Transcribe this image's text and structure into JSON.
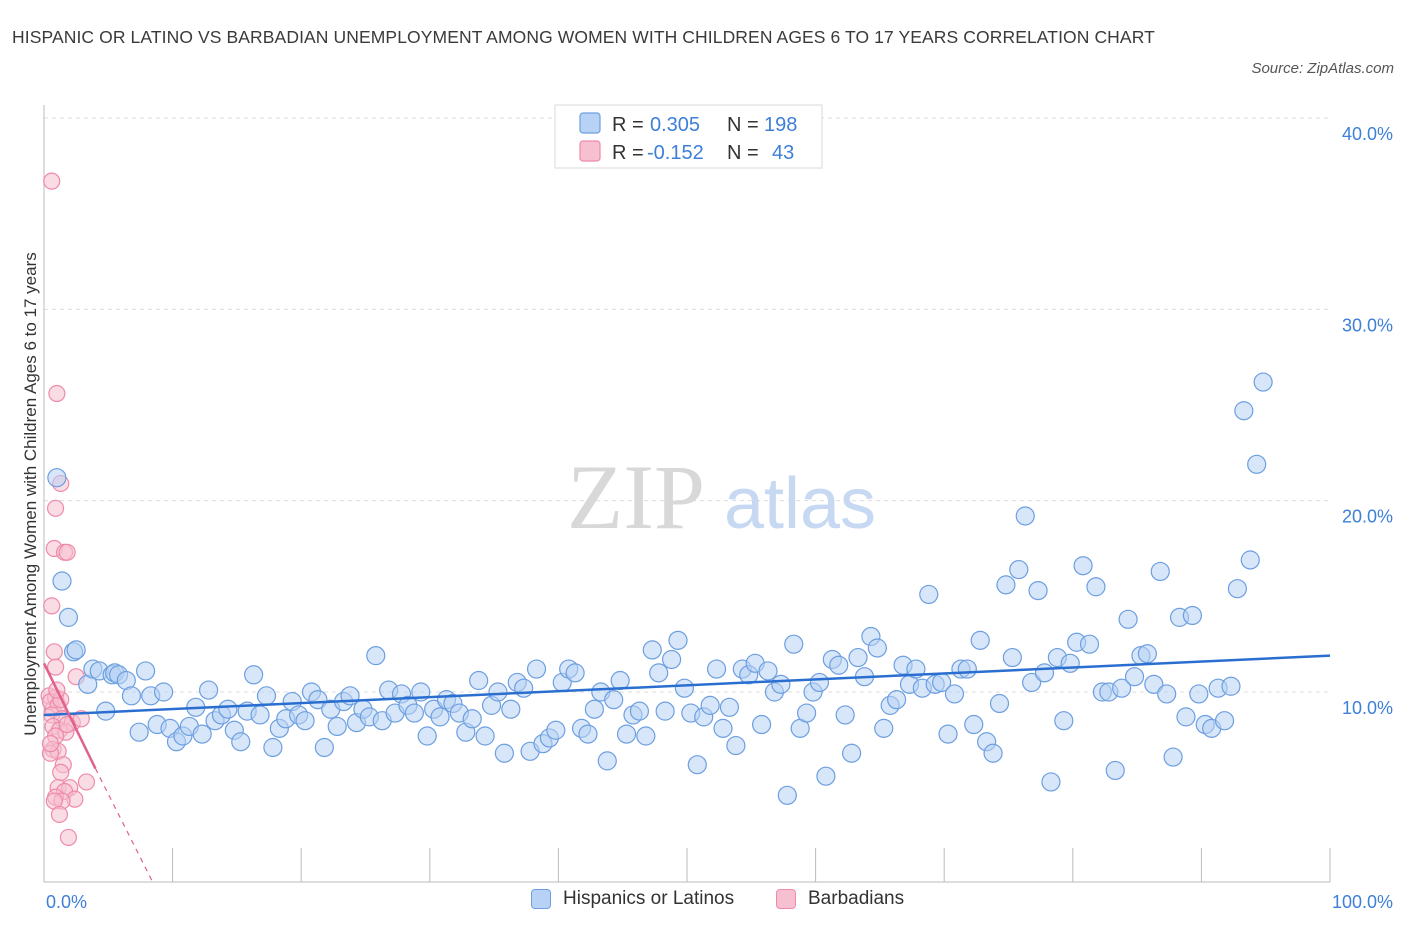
{
  "title": "HISPANIC OR LATINO VS BARBADIAN UNEMPLOYMENT AMONG WOMEN WITH CHILDREN AGES 6 TO 17 YEARS CORRELATION CHART",
  "source": "Source: ZipAtlas.com",
  "watermark": {
    "zip": "ZIP",
    "atlas": "atlas"
  },
  "legend_box": {
    "rows": [
      {
        "r_label": "R =",
        "r_value": "0.305",
        "n_label": "N =",
        "n_value": "198"
      },
      {
        "r_label": "R =",
        "r_value": "-0.152",
        "n_label": "N =",
        "n_value": "43"
      }
    ]
  },
  "bottom_legend": [
    "Hispanics or Latinos",
    "Barbadians"
  ],
  "colors": {
    "blue_fill": "#b7d2f4",
    "blue_stroke": "#6d9fe0",
    "blue_line": "#2a6fd0",
    "pink_fill": "#f6c0d0",
    "pink_stroke": "#ee8aaa",
    "pink_line": "#e0618d",
    "tick_text": "#3d7fd9",
    "grid": "#dddddd"
  },
  "chart_data": {
    "type": "scatter",
    "xlabel": "",
    "ylabel": "Unemployment Among Women with Children Ages 6 to 17 years",
    "xlim": [
      0,
      100
    ],
    "ylim": [
      0,
      40
    ],
    "x_tick_labels": [
      "0.0%",
      "100.0%"
    ],
    "y_ticks": [
      10,
      20,
      30,
      40
    ],
    "y_tick_labels": [
      "10.0%",
      "20.0%",
      "30.0%",
      "40.0%"
    ],
    "grid": "horizontal dashed",
    "legend_position": "top-center",
    "series": [
      {
        "name": "Hispanics or Latinos",
        "R": 0.305,
        "N": 198,
        "trendline": {
          "x": [
            0,
            100
          ],
          "y": [
            8.8,
            11.9
          ]
        },
        "points": [
          [
            1,
            21.2
          ],
          [
            1.4,
            15.8
          ],
          [
            1.9,
            13.9
          ],
          [
            2.3,
            12.1
          ],
          [
            2.5,
            12.2
          ],
          [
            3.4,
            10.4
          ],
          [
            3.8,
            11.2
          ],
          [
            4.3,
            11.1
          ],
          [
            4.8,
            9.0
          ],
          [
            5.3,
            10.9
          ],
          [
            5.5,
            11.0
          ],
          [
            5.8,
            10.9
          ],
          [
            6.4,
            10.6
          ],
          [
            6.8,
            9.8
          ],
          [
            7.4,
            7.9
          ],
          [
            7.9,
            11.1
          ],
          [
            8.3,
            9.8
          ],
          [
            8.8,
            8.3
          ],
          [
            9.3,
            10.0
          ],
          [
            9.8,
            8.1
          ],
          [
            10.3,
            7.4
          ],
          [
            10.8,
            7.7
          ],
          [
            11.3,
            8.2
          ],
          [
            11.8,
            9.2
          ],
          [
            12.3,
            7.8
          ],
          [
            12.8,
            10.1
          ],
          [
            13.3,
            8.5
          ],
          [
            13.8,
            8.8
          ],
          [
            14.3,
            9.1
          ],
          [
            14.8,
            8.0
          ],
          [
            15.3,
            7.4
          ],
          [
            15.8,
            9.0
          ],
          [
            16.3,
            10.9
          ],
          [
            16.8,
            8.8
          ],
          [
            17.3,
            9.8
          ],
          [
            17.8,
            7.1
          ],
          [
            18.3,
            8.1
          ],
          [
            18.8,
            8.6
          ],
          [
            19.3,
            9.5
          ],
          [
            19.8,
            8.8
          ],
          [
            20.3,
            8.5
          ],
          [
            20.8,
            10.0
          ],
          [
            21.3,
            9.6
          ],
          [
            21.8,
            7.1
          ],
          [
            22.3,
            9.1
          ],
          [
            22.8,
            8.2
          ],
          [
            23.3,
            9.5
          ],
          [
            23.8,
            9.8
          ],
          [
            24.3,
            8.4
          ],
          [
            24.8,
            9.1
          ],
          [
            25.3,
            8.7
          ],
          [
            25.8,
            11.9
          ],
          [
            26.3,
            8.5
          ],
          [
            26.8,
            10.1
          ],
          [
            27.3,
            8.9
          ],
          [
            27.8,
            9.9
          ],
          [
            28.3,
            9.3
          ],
          [
            28.8,
            8.9
          ],
          [
            29.3,
            10.0
          ],
          [
            29.8,
            7.7
          ],
          [
            30.3,
            9.1
          ],
          [
            30.8,
            8.7
          ],
          [
            31.3,
            9.6
          ],
          [
            31.8,
            9.4
          ],
          [
            32.3,
            8.9
          ],
          [
            32.8,
            7.9
          ],
          [
            33.3,
            8.6
          ],
          [
            33.8,
            10.6
          ],
          [
            34.3,
            7.7
          ],
          [
            34.8,
            9.3
          ],
          [
            35.3,
            10.0
          ],
          [
            35.8,
            6.8
          ],
          [
            36.3,
            9.1
          ],
          [
            36.8,
            10.5
          ],
          [
            37.3,
            10.2
          ],
          [
            37.8,
            6.9
          ],
          [
            38.3,
            11.2
          ],
          [
            38.8,
            7.3
          ],
          [
            39.3,
            7.6
          ],
          [
            39.8,
            8.0
          ],
          [
            40.3,
            10.5
          ],
          [
            40.8,
            11.2
          ],
          [
            41.3,
            11.0
          ],
          [
            41.8,
            8.1
          ],
          [
            42.3,
            7.8
          ],
          [
            42.8,
            9.1
          ],
          [
            43.3,
            10.0
          ],
          [
            43.8,
            6.4
          ],
          [
            44.3,
            9.6
          ],
          [
            44.8,
            10.6
          ],
          [
            45.3,
            7.8
          ],
          [
            45.8,
            8.8
          ],
          [
            46.3,
            9.0
          ],
          [
            46.8,
            7.7
          ],
          [
            47.3,
            12.2
          ],
          [
            47.8,
            11.0
          ],
          [
            48.3,
            9.0
          ],
          [
            48.8,
            11.7
          ],
          [
            49.3,
            12.7
          ],
          [
            49.8,
            10.2
          ],
          [
            50.3,
            8.9
          ],
          [
            50.8,
            6.2
          ],
          [
            51.3,
            8.7
          ],
          [
            51.8,
            9.3
          ],
          [
            52.3,
            11.2
          ],
          [
            52.8,
            8.1
          ],
          [
            53.3,
            9.2
          ],
          [
            53.8,
            7.2
          ],
          [
            54.3,
            11.2
          ],
          [
            54.8,
            10.9
          ],
          [
            55.3,
            11.5
          ],
          [
            55.8,
            8.3
          ],
          [
            56.3,
            11.1
          ],
          [
            56.8,
            10.0
          ],
          [
            57.3,
            10.4
          ],
          [
            57.8,
            4.6
          ],
          [
            58.3,
            12.5
          ],
          [
            58.8,
            8.1
          ],
          [
            59.3,
            8.9
          ],
          [
            59.8,
            10.0
          ],
          [
            60.3,
            10.5
          ],
          [
            60.8,
            5.6
          ],
          [
            61.3,
            11.7
          ],
          [
            61.8,
            11.4
          ],
          [
            62.3,
            8.8
          ],
          [
            62.8,
            6.8
          ],
          [
            63.3,
            11.8
          ],
          [
            63.8,
            10.8
          ],
          [
            64.3,
            12.9
          ],
          [
            64.8,
            12.3
          ],
          [
            65.3,
            8.1
          ],
          [
            65.8,
            9.3
          ],
          [
            66.3,
            9.6
          ],
          [
            66.8,
            11.4
          ],
          [
            67.3,
            10.4
          ],
          [
            67.8,
            11.2
          ],
          [
            68.3,
            10.2
          ],
          [
            68.8,
            15.1
          ],
          [
            69.3,
            10.4
          ],
          [
            69.8,
            10.5
          ],
          [
            70.3,
            7.8
          ],
          [
            70.8,
            9.9
          ],
          [
            71.3,
            11.2
          ],
          [
            71.8,
            11.2
          ],
          [
            72.3,
            8.3
          ],
          [
            72.8,
            12.7
          ],
          [
            73.3,
            7.4
          ],
          [
            73.8,
            6.8
          ],
          [
            74.3,
            9.4
          ],
          [
            74.8,
            15.6
          ],
          [
            75.3,
            11.8
          ],
          [
            75.8,
            16.4
          ],
          [
            76.3,
            19.2
          ],
          [
            76.8,
            10.5
          ],
          [
            77.3,
            15.3
          ],
          [
            77.8,
            11.0
          ],
          [
            78.3,
            5.3
          ],
          [
            78.8,
            11.8
          ],
          [
            79.3,
            8.5
          ],
          [
            79.8,
            11.5
          ],
          [
            80.3,
            12.6
          ],
          [
            80.8,
            16.6
          ],
          [
            81.3,
            12.5
          ],
          [
            81.8,
            15.5
          ],
          [
            82.3,
            10.0
          ],
          [
            82.8,
            10.0
          ],
          [
            83.3,
            5.9
          ],
          [
            83.8,
            10.2
          ],
          [
            84.3,
            13.8
          ],
          [
            84.8,
            10.8
          ],
          [
            85.3,
            11.9
          ],
          [
            85.8,
            12.0
          ],
          [
            86.3,
            10.4
          ],
          [
            86.8,
            16.3
          ],
          [
            87.3,
            9.9
          ],
          [
            87.8,
            6.6
          ],
          [
            88.3,
            13.9
          ],
          [
            88.8,
            8.7
          ],
          [
            89.3,
            14.0
          ],
          [
            89.8,
            9.9
          ],
          [
            90.3,
            8.3
          ],
          [
            90.8,
            8.1
          ],
          [
            91.3,
            10.2
          ],
          [
            91.8,
            8.5
          ],
          [
            92.3,
            10.3
          ],
          [
            92.8,
            15.4
          ],
          [
            93.3,
            24.7
          ],
          [
            93.8,
            16.9
          ],
          [
            94.3,
            21.9
          ],
          [
            94.8,
            26.2
          ]
        ]
      },
      {
        "name": "Barbadians",
        "R": -0.152,
        "N": 43,
        "trendline": {
          "x": [
            0,
            4
          ],
          "y": [
            11.5,
            6.0
          ],
          "dashed_extension": {
            "x": [
              4,
              8.5
            ],
            "y": [
              6.0,
              0
            ]
          }
        },
        "points": [
          [
            0.6,
            36.7
          ],
          [
            1,
            25.6
          ],
          [
            1.3,
            20.9
          ],
          [
            0.9,
            19.6
          ],
          [
            0.8,
            17.5
          ],
          [
            1.6,
            17.3
          ],
          [
            1.8,
            17.3
          ],
          [
            0.6,
            14.5
          ],
          [
            0.9,
            11.3
          ],
          [
            2.5,
            10.8
          ],
          [
            0.4,
            9.8
          ],
          [
            0.9,
            9.7
          ],
          [
            0.7,
            9.1
          ],
          [
            0.5,
            9.5
          ],
          [
            1.1,
            9.3
          ],
          [
            0.6,
            8.8
          ],
          [
            1.4,
            8.6
          ],
          [
            2.2,
            8.4
          ],
          [
            0.7,
            8.2
          ],
          [
            1.2,
            8.0
          ],
          [
            1.7,
            7.9
          ],
          [
            0.9,
            7.7
          ],
          [
            0.7,
            7.0
          ],
          [
            1.1,
            6.9
          ],
          [
            0.5,
            6.8
          ],
          [
            1.5,
            6.2
          ],
          [
            1.3,
            5.8
          ],
          [
            3.3,
            5.3
          ],
          [
            1.1,
            5.0
          ],
          [
            2.0,
            5.0
          ],
          [
            1.6,
            4.8
          ],
          [
            0.9,
            4.5
          ],
          [
            2.4,
            4.4
          ],
          [
            1.4,
            4.3
          ],
          [
            0.8,
            4.3
          ],
          [
            1.2,
            3.6
          ],
          [
            1.9,
            2.4
          ],
          [
            0.5,
            7.3
          ],
          [
            1.3,
            9.6
          ],
          [
            2.9,
            8.6
          ],
          [
            0.8,
            12.1
          ],
          [
            1.0,
            10.1
          ],
          [
            1.8,
            8.3
          ]
        ]
      }
    ]
  }
}
